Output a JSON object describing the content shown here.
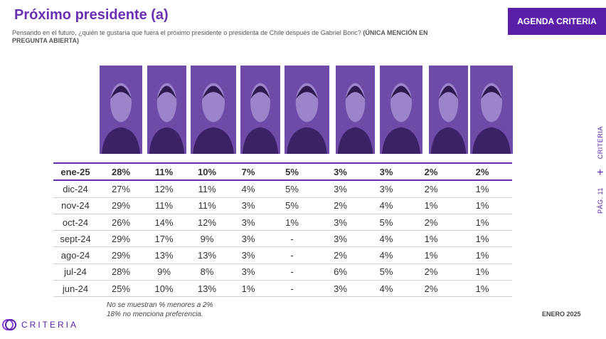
{
  "title": "Próximo presidente (a)",
  "subtitle": "Pensando en el futuro, ¿quién te gustaría que fuera el próximo presidente o presidenta de Chile después de Gabriel Boric?",
  "subtitle_note": "(ÚNICA MENCIÓN EN PREGUNTA ABIERTA)",
  "tag": "AGENDA CRITERIA",
  "side_brand": "CRITERIA",
  "side_plus": "+",
  "side_page": "PÁG. 11",
  "logo_text": "CRITERIA",
  "date": "ENERO 2025",
  "notes": [
    "No se muestran % menores a 2%",
    "18% no menciona preferencia."
  ],
  "colors": {
    "accent": "#6b2fb3",
    "tag_bg": "#5b1ea8",
    "photo_tint": "#6f4ba8"
  },
  "chart_data": {
    "type": "table",
    "title": "Próximo presidente (a)",
    "columns": [
      "",
      "",
      "",
      "",
      "",
      "",
      "",
      "",
      "",
      ""
    ],
    "rows": [
      [
        "ene-25",
        "28%",
        "11%",
        "10%",
        "7%",
        "5%",
        "3%",
        "3%",
        "2%",
        "2%"
      ],
      [
        "dic-24",
        "27%",
        "12%",
        "11%",
        "4%",
        "5%",
        "3%",
        "3%",
        "2%",
        "1%"
      ],
      [
        "nov-24",
        "29%",
        "11%",
        "11%",
        "3%",
        "5%",
        "2%",
        "4%",
        "1%",
        "1%"
      ],
      [
        "oct-24",
        "26%",
        "14%",
        "12%",
        "3%",
        "1%",
        "3%",
        "5%",
        "2%",
        "1%"
      ],
      [
        "sept-24",
        "29%",
        "17%",
        "9%",
        "3%",
        "-",
        "3%",
        "4%",
        "1%",
        "1%"
      ],
      [
        "ago-24",
        "29%",
        "13%",
        "13%",
        "3%",
        "-",
        "2%",
        "4%",
        "1%",
        "1%"
      ],
      [
        "jul-24",
        "28%",
        "9%",
        "8%",
        "3%",
        "-",
        "6%",
        "5%",
        "2%",
        "1%"
      ],
      [
        "jun-24",
        "25%",
        "10%",
        "13%",
        "1%",
        "-",
        "3%",
        "4%",
        "2%",
        "1%"
      ]
    ]
  }
}
